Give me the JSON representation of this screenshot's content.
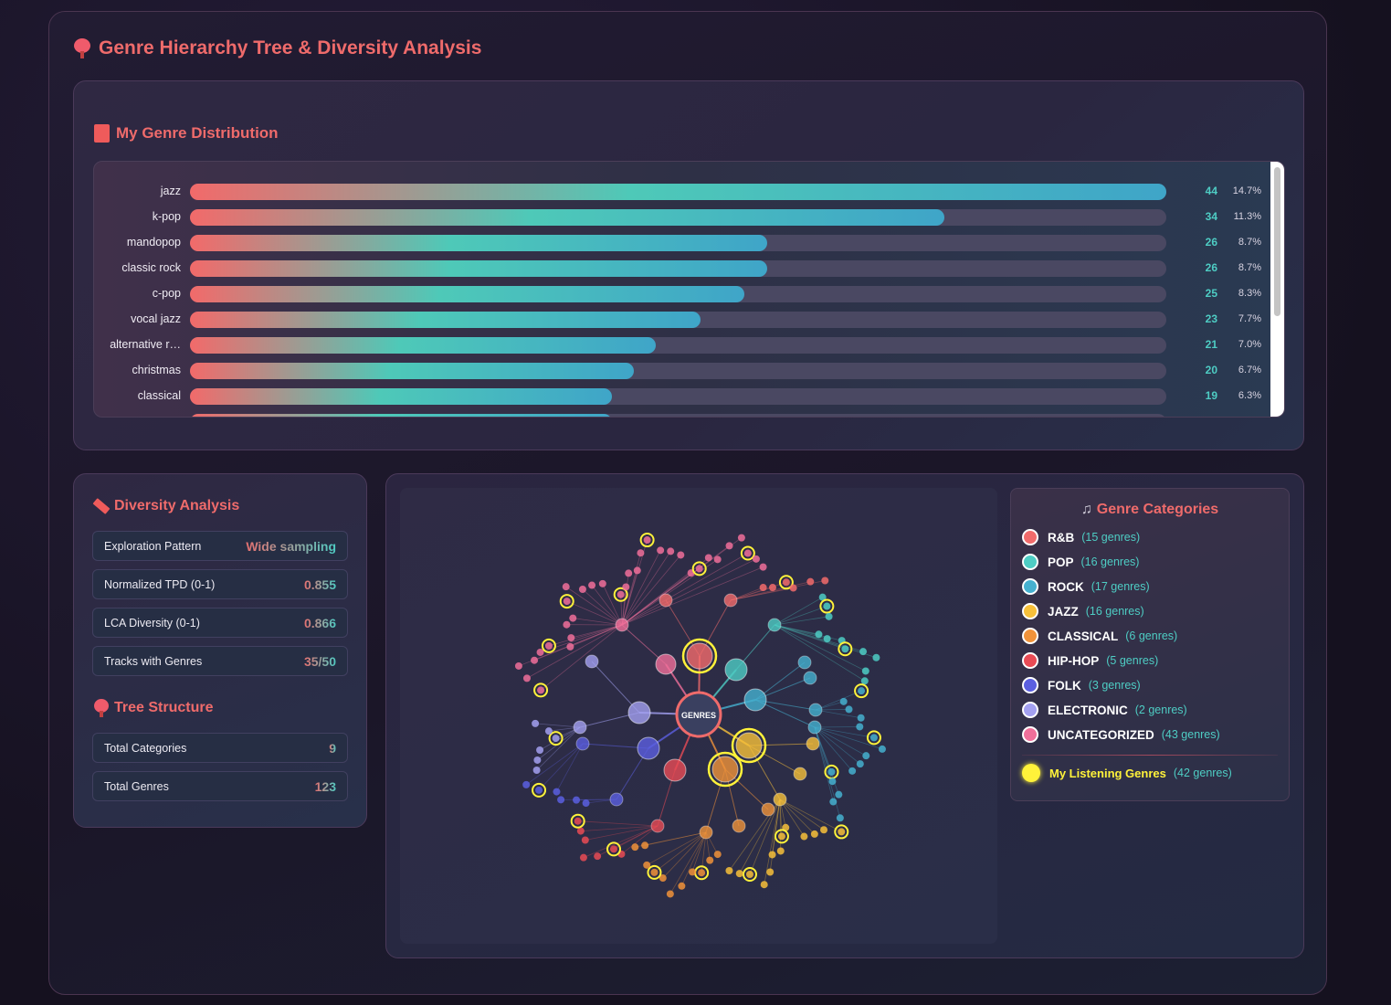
{
  "page": {
    "title": "Genre Hierarchy Tree & Diversity Analysis"
  },
  "distribution": {
    "title": "My Genre Distribution",
    "rows": [
      {
        "genre": "jazz",
        "count": "44",
        "pct": "14.7%",
        "fraction": 1.0
      },
      {
        "genre": "k-pop",
        "count": "34",
        "pct": "11.3%",
        "fraction": 0.773
      },
      {
        "genre": "mandopop",
        "count": "26",
        "pct": "8.7%",
        "fraction": 0.591
      },
      {
        "genre": "classic rock",
        "count": "26",
        "pct": "8.7%",
        "fraction": 0.591
      },
      {
        "genre": "c-pop",
        "count": "25",
        "pct": "8.3%",
        "fraction": 0.568
      },
      {
        "genre": "vocal jazz",
        "count": "23",
        "pct": "7.7%",
        "fraction": 0.523
      },
      {
        "genre": "alternative r…",
        "count": "21",
        "pct": "7.0%",
        "fraction": 0.477
      },
      {
        "genre": "christmas",
        "count": "20",
        "pct": "6.7%",
        "fraction": 0.455
      },
      {
        "genre": "classical",
        "count": "19",
        "pct": "6.3%",
        "fraction": 0.432
      },
      {
        "genre": "",
        "count": "",
        "pct": "",
        "fraction": 0.432
      }
    ]
  },
  "diversity": {
    "title": "Diversity Analysis",
    "metrics": [
      {
        "label": "Exploration Pattern",
        "value": "Wide sampling"
      },
      {
        "label": "Normalized TPD (0-1)",
        "value": "0.855"
      },
      {
        "label": "LCA Diversity (0-1)",
        "value": "0.866"
      },
      {
        "label": "Tracks with Genres",
        "value": "35/50"
      }
    ],
    "tree_title": "Tree Structure",
    "tree_metrics": [
      {
        "label": "Total Categories",
        "value": "9"
      },
      {
        "label": "Total Genres",
        "value": "123"
      }
    ]
  },
  "tree": {
    "root_label": "GENRES"
  },
  "legend": {
    "title": "Genre Categories",
    "note_icon": "music-note-icon",
    "categories": [
      {
        "name": "R&B",
        "count": "(15 genres)",
        "color": "#f26b6b"
      },
      {
        "name": "POP",
        "count": "(16 genres)",
        "color": "#4ecdc4"
      },
      {
        "name": "ROCK",
        "count": "(17 genres)",
        "color": "#45b0cf"
      },
      {
        "name": "JAZZ",
        "count": "(16 genres)",
        "color": "#f7c03a"
      },
      {
        "name": "CLASSICAL",
        "count": "(6 genres)",
        "color": "#f0923a"
      },
      {
        "name": "HIP-HOP",
        "count": "(5 genres)",
        "color": "#e94b55"
      },
      {
        "name": "FOLK",
        "count": "(3 genres)",
        "color": "#5b5fe0"
      },
      {
        "name": "ELECTRONIC",
        "count": "(2 genres)",
        "color": "#a3a0f0"
      },
      {
        "name": "UNCATEGORIZED",
        "count": "(43 genres)",
        "color": "#f06f9a"
      }
    ],
    "mine": {
      "name": "My Listening Genres",
      "count": "(42 genres)",
      "color": "#fff23a"
    }
  }
}
